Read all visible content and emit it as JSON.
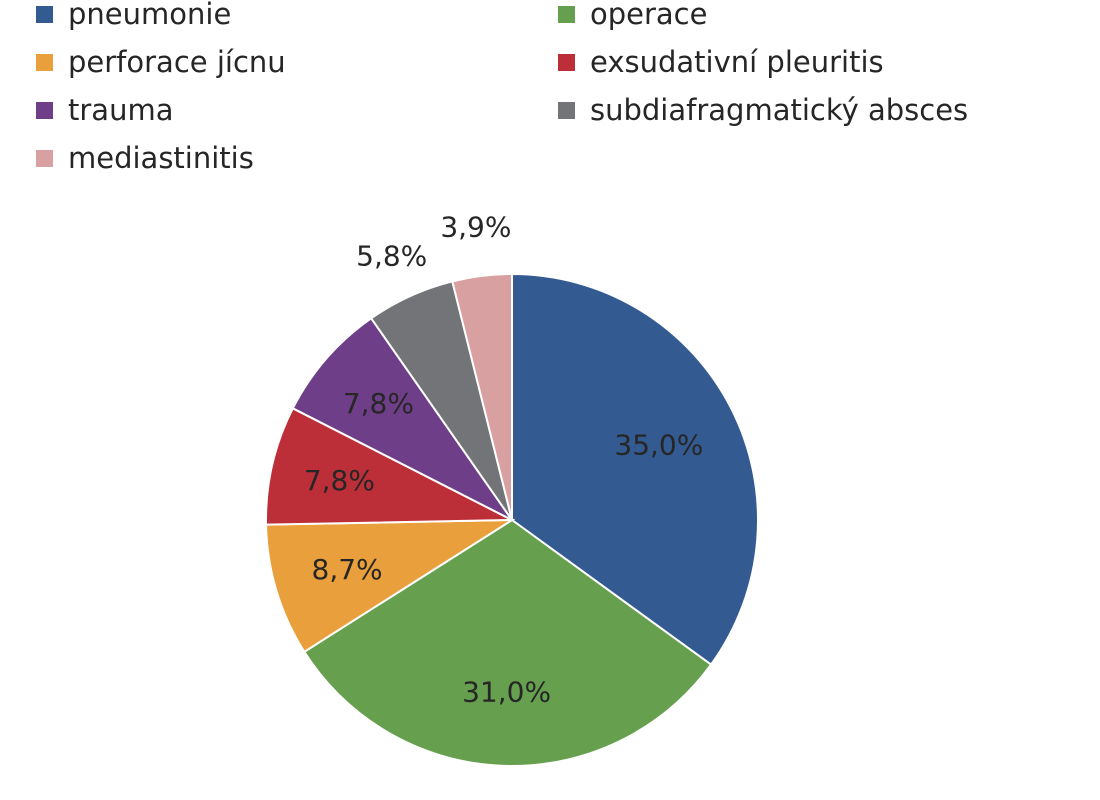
{
  "chart_data": {
    "type": "pie",
    "title": "",
    "legend": "top",
    "slices": [
      {
        "label": "pneumonie",
        "value": 35.0,
        "display": "35,0%",
        "color": "#335b91"
      },
      {
        "label": "operace",
        "value": 31.0,
        "display": "31,0%",
        "color": "#66a04f"
      },
      {
        "label": "perforace jícnu",
        "value": 8.7,
        "display": "8,7%",
        "color": "#e9a03c"
      },
      {
        "label": "exsudativní pleuritis",
        "value": 7.8,
        "display": "7,8%",
        "color": "#bd2f38"
      },
      {
        "label": "trauma",
        "value": 7.8,
        "display": "7,8%",
        "color": "#6e3f88"
      },
      {
        "label": "subdiafragmatický absces",
        "value": 5.8,
        "display": "5,8%",
        "color": "#727477"
      },
      {
        "label": "mediastinitis",
        "value": 3.9,
        "display": "3,9%",
        "color": "#d9a0a2"
      }
    ]
  }
}
